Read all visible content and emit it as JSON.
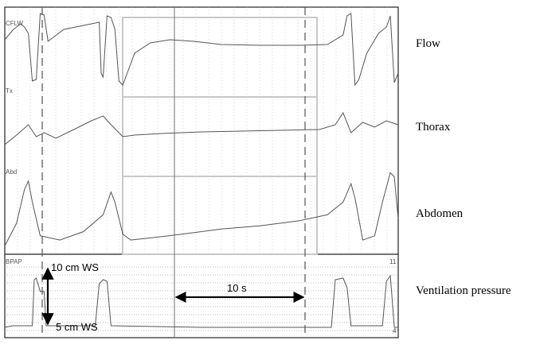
{
  "chart_data": {
    "type": "line",
    "title": "",
    "channels": [
      {
        "name": "Flow",
        "tag": "CFLW",
        "baseline": 0.5,
        "trace": [
          [
            0.0,
            0.62
          ],
          [
            0.02,
            0.74
          ],
          [
            0.04,
            0.82
          ],
          [
            0.05,
            0.78
          ],
          [
            0.06,
            0.7
          ],
          [
            0.07,
            0.1
          ],
          [
            0.08,
            0.12
          ],
          [
            0.09,
            0.95
          ],
          [
            0.1,
            0.93
          ],
          [
            0.11,
            0.6
          ],
          [
            0.15,
            0.75
          ],
          [
            0.2,
            0.8
          ],
          [
            0.24,
            0.84
          ],
          [
            0.245,
            0.2
          ],
          [
            0.25,
            0.15
          ],
          [
            0.26,
            0.92
          ],
          [
            0.27,
            0.9
          ],
          [
            0.28,
            0.75
          ],
          [
            0.29,
            0.1
          ],
          [
            0.3,
            0.05
          ],
          [
            0.33,
            0.45
          ],
          [
            0.37,
            0.58
          ],
          [
            0.42,
            0.62
          ],
          [
            0.48,
            0.6
          ],
          [
            0.55,
            0.56
          ],
          [
            0.65,
            0.55
          ],
          [
            0.75,
            0.55
          ],
          [
            0.82,
            0.56
          ],
          [
            0.86,
            0.68
          ],
          [
            0.87,
            0.92
          ],
          [
            0.88,
            0.95
          ],
          [
            0.89,
            0.05
          ],
          [
            0.9,
            0.12
          ],
          [
            0.92,
            0.45
          ],
          [
            0.95,
            0.7
          ],
          [
            0.97,
            0.78
          ],
          [
            0.98,
            0.92
          ],
          [
            0.99,
            0.08
          ],
          [
            1.0,
            0.2
          ]
        ]
      },
      {
        "name": "Thorax",
        "tag": "Tx",
        "baseline": 0.5,
        "trace": [
          [
            0.0,
            0.3
          ],
          [
            0.03,
            0.42
          ],
          [
            0.06,
            0.55
          ],
          [
            0.08,
            0.4
          ],
          [
            0.1,
            0.45
          ],
          [
            0.13,
            0.38
          ],
          [
            0.18,
            0.5
          ],
          [
            0.22,
            0.6
          ],
          [
            0.25,
            0.66
          ],
          [
            0.27,
            0.55
          ],
          [
            0.3,
            0.4
          ],
          [
            0.33,
            0.42
          ],
          [
            0.4,
            0.44
          ],
          [
            0.5,
            0.46
          ],
          [
            0.6,
            0.47
          ],
          [
            0.7,
            0.48
          ],
          [
            0.8,
            0.49
          ],
          [
            0.84,
            0.55
          ],
          [
            0.86,
            0.7
          ],
          [
            0.88,
            0.45
          ],
          [
            0.91,
            0.58
          ],
          [
            0.94,
            0.52
          ],
          [
            0.97,
            0.6
          ],
          [
            1.0,
            0.55
          ]
        ]
      },
      {
        "name": "Abdomen",
        "tag": "Abd",
        "baseline": 0.5,
        "trace": [
          [
            0.0,
            0.08
          ],
          [
            0.03,
            0.35
          ],
          [
            0.05,
            0.75
          ],
          [
            0.06,
            0.85
          ],
          [
            0.07,
            0.6
          ],
          [
            0.09,
            0.2
          ],
          [
            0.11,
            0.18
          ],
          [
            0.14,
            0.15
          ],
          [
            0.2,
            0.25
          ],
          [
            0.25,
            0.45
          ],
          [
            0.27,
            0.72
          ],
          [
            0.28,
            0.6
          ],
          [
            0.3,
            0.22
          ],
          [
            0.32,
            0.15
          ],
          [
            0.38,
            0.18
          ],
          [
            0.45,
            0.22
          ],
          [
            0.55,
            0.28
          ],
          [
            0.65,
            0.32
          ],
          [
            0.75,
            0.38
          ],
          [
            0.82,
            0.45
          ],
          [
            0.86,
            0.6
          ],
          [
            0.88,
            0.82
          ],
          [
            0.89,
            0.65
          ],
          [
            0.91,
            0.15
          ],
          [
            0.94,
            0.2
          ],
          [
            0.96,
            0.6
          ],
          [
            0.98,
            0.95
          ],
          [
            0.99,
            0.9
          ],
          [
            1.0,
            0.4
          ]
        ]
      },
      {
        "name": "Ventilation pressure",
        "tag": "BPAP",
        "baseline": 0.5,
        "trace": [
          [
            0.0,
            0.1
          ],
          [
            0.02,
            0.12
          ],
          [
            0.07,
            0.12
          ],
          [
            0.075,
            0.7
          ],
          [
            0.08,
            0.72
          ],
          [
            0.09,
            0.55
          ],
          [
            0.1,
            0.55
          ],
          [
            0.105,
            0.12
          ],
          [
            0.23,
            0.12
          ],
          [
            0.24,
            0.65
          ],
          [
            0.25,
            0.7
          ],
          [
            0.26,
            0.68
          ],
          [
            0.27,
            0.12
          ],
          [
            0.5,
            0.1
          ],
          [
            0.83,
            0.1
          ],
          [
            0.84,
            0.7
          ],
          [
            0.86,
            0.72
          ],
          [
            0.87,
            0.6
          ],
          [
            0.88,
            0.12
          ],
          [
            0.96,
            0.12
          ],
          [
            0.97,
            0.68
          ],
          [
            0.98,
            0.75
          ],
          [
            0.99,
            0.1
          ],
          [
            1.0,
            0.1
          ]
        ]
      }
    ],
    "annotations": {
      "pressure_high": "10 cm WS",
      "pressure_low": "5 cm WS",
      "duration": "10 s",
      "corner_top": "11",
      "corner_bottom": "4"
    },
    "grid": true
  }
}
